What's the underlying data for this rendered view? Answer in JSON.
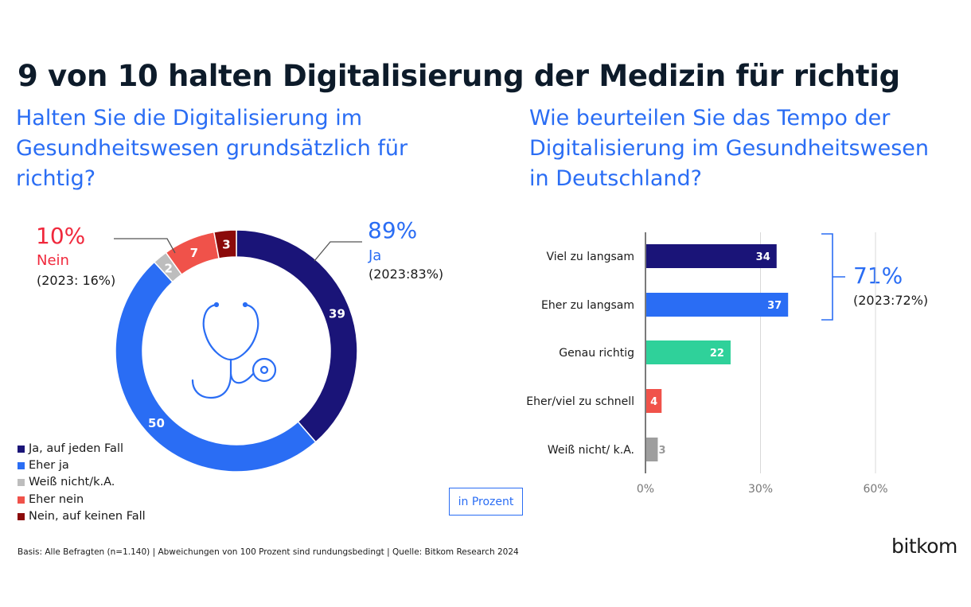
{
  "title": "9 von 10 halten Digitalisierung der Medizin für richtig",
  "left": {
    "question": "Halten Sie die Digitalisierung im Gesundheitswesen grundsätzlich für richtig?",
    "nein_callout": {
      "pct": "10%",
      "label": "Nein",
      "prev": "(2023: 16%)"
    },
    "ja_callout": {
      "pct": "89%",
      "label": "Ja",
      "prev": "(2023:83%)"
    },
    "icon": "stethoscope-icon"
  },
  "right": {
    "question": "Wie beurteilen Sie das Tempo der Digitalisierung im Gesundheitswesen in Deutschland?",
    "bracket_callout": {
      "pct": "71%",
      "prev": "(2023:72%)"
    }
  },
  "chart_data": [
    {
      "type": "pie",
      "variant": "donut",
      "labels": [
        "Ja, auf jeden Fall",
        "Eher ja",
        "Weiß nicht/k.A.",
        "Eher nein",
        "Nein, auf keinen Fall"
      ],
      "values": [
        39,
        50,
        2,
        7,
        3
      ],
      "colors": [
        "#1a1478",
        "#2a6df4",
        "#bdbdbd",
        "#f0524a",
        "#8b0a0a"
      ],
      "legend": "bottom-left"
    },
    {
      "type": "bar",
      "orientation": "horizontal",
      "categories": [
        "Viel zu langsam",
        "Eher zu langsam",
        "Genau richtig",
        "Eher/viel zu schnell",
        "Weiß nicht/ k.A."
      ],
      "values": [
        34,
        37,
        22,
        4,
        3
      ],
      "colors": [
        "#1a1478",
        "#2a6df4",
        "#2fd19a",
        "#f0524a",
        "#9e9e9e"
      ],
      "xlim": [
        0,
        60
      ],
      "xticks": [
        "0%",
        "30%",
        "60%"
      ],
      "grid": true
    }
  ],
  "unit_note": "in Prozent",
  "footer": "Basis: Alle Befragten (n=1.140) | Abweichungen von 100 Prozent sind rundungsbedingt  | Quelle: Bitkom Research 2024",
  "logo": "bitkom"
}
